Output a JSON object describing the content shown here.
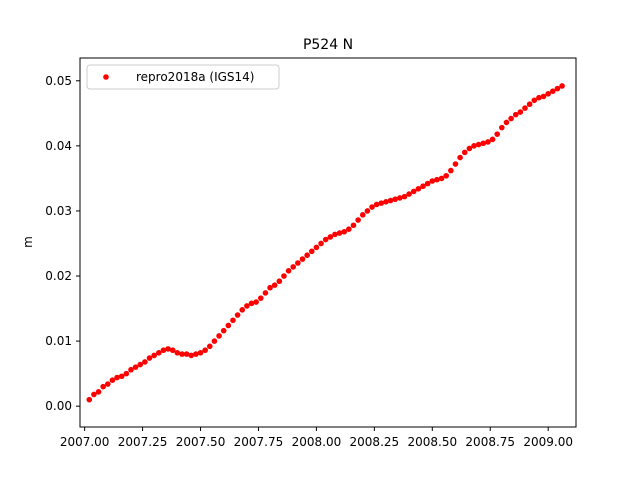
{
  "figure": {
    "background": "#ffffff"
  },
  "chart_data": {
    "type": "scatter",
    "title": "P524 N",
    "xlabel": "",
    "ylabel": "m",
    "xlim": [
      2006.98,
      2009.12
    ],
    "ylim": [
      -0.0032,
      0.0535
    ],
    "xticks": [
      {
        "value": 2007.0,
        "label": "2007.00"
      },
      {
        "value": 2007.25,
        "label": "2007.25"
      },
      {
        "value": 2007.5,
        "label": "2007.50"
      },
      {
        "value": 2007.75,
        "label": "2007.75"
      },
      {
        "value": 2008.0,
        "label": "2008.00"
      },
      {
        "value": 2008.25,
        "label": "2008.25"
      },
      {
        "value": 2008.5,
        "label": "2008.50"
      },
      {
        "value": 2008.75,
        "label": "2008.75"
      },
      {
        "value": 2009.0,
        "label": "2009.00"
      }
    ],
    "yticks": [
      {
        "value": 0.0,
        "label": "0.00"
      },
      {
        "value": 0.01,
        "label": "0.01"
      },
      {
        "value": 0.02,
        "label": "0.02"
      },
      {
        "value": 0.03,
        "label": "0.03"
      },
      {
        "value": 0.04,
        "label": "0.04"
      },
      {
        "value": 0.05,
        "label": "0.05"
      }
    ],
    "grid": false,
    "legend_position": "top-left",
    "series": [
      {
        "name": "repro2018a (IGS14)",
        "color": "#ff0000",
        "marker": "circle",
        "x": [
          2007.02,
          2007.04,
          2007.06,
          2007.08,
          2007.1,
          2007.12,
          2007.14,
          2007.16,
          2007.18,
          2007.2,
          2007.22,
          2007.24,
          2007.26,
          2007.28,
          2007.3,
          2007.32,
          2007.34,
          2007.36,
          2007.38,
          2007.4,
          2007.42,
          2007.44,
          2007.46,
          2007.48,
          2007.5,
          2007.52,
          2007.54,
          2007.56,
          2007.58,
          2007.6,
          2007.62,
          2007.64,
          2007.66,
          2007.68,
          2007.7,
          2007.72,
          2007.74,
          2007.76,
          2007.78,
          2007.8,
          2007.82,
          2007.84,
          2007.86,
          2007.88,
          2007.9,
          2007.92,
          2007.94,
          2007.96,
          2007.98,
          2008.0,
          2008.02,
          2008.04,
          2008.06,
          2008.08,
          2008.1,
          2008.12,
          2008.14,
          2008.16,
          2008.18,
          2008.2,
          2008.22,
          2008.24,
          2008.26,
          2008.28,
          2008.3,
          2008.32,
          2008.34,
          2008.36,
          2008.38,
          2008.4,
          2008.42,
          2008.44,
          2008.46,
          2008.48,
          2008.5,
          2008.52,
          2008.54,
          2008.56,
          2008.58,
          2008.6,
          2008.62,
          2008.64,
          2008.66,
          2008.68,
          2008.7,
          2008.72,
          2008.74,
          2008.76,
          2008.78,
          2008.8,
          2008.82,
          2008.84,
          2008.86,
          2008.88,
          2008.9,
          2008.92,
          2008.94,
          2008.96,
          2008.98,
          2009.0,
          2009.02,
          2009.04,
          2009.06
        ],
        "y": [
          0.001,
          0.0018,
          0.0022,
          0.003,
          0.0034,
          0.004,
          0.0044,
          0.0046,
          0.005,
          0.0056,
          0.006,
          0.0064,
          0.0068,
          0.0074,
          0.0078,
          0.0082,
          0.0086,
          0.0088,
          0.0086,
          0.0082,
          0.008,
          0.008,
          0.0078,
          0.008,
          0.0082,
          0.0086,
          0.0092,
          0.01,
          0.0108,
          0.0116,
          0.0124,
          0.0132,
          0.014,
          0.0148,
          0.0154,
          0.0158,
          0.016,
          0.0166,
          0.0174,
          0.0182,
          0.0186,
          0.0192,
          0.02,
          0.0208,
          0.0214,
          0.022,
          0.0226,
          0.0232,
          0.0238,
          0.0244,
          0.025,
          0.0256,
          0.026,
          0.0264,
          0.0266,
          0.0268,
          0.0272,
          0.0278,
          0.0286,
          0.0294,
          0.03,
          0.0306,
          0.031,
          0.0312,
          0.0314,
          0.0316,
          0.0318,
          0.032,
          0.0322,
          0.0326,
          0.033,
          0.0334,
          0.0338,
          0.0342,
          0.0346,
          0.0348,
          0.035,
          0.0354,
          0.0362,
          0.0372,
          0.0382,
          0.039,
          0.0396,
          0.04,
          0.0402,
          0.0404,
          0.0406,
          0.041,
          0.0418,
          0.0428,
          0.0436,
          0.0442,
          0.0448,
          0.0452,
          0.0458,
          0.0464,
          0.047,
          0.0474,
          0.0476,
          0.048,
          0.0484,
          0.0488,
          0.0492
        ]
      }
    ]
  }
}
